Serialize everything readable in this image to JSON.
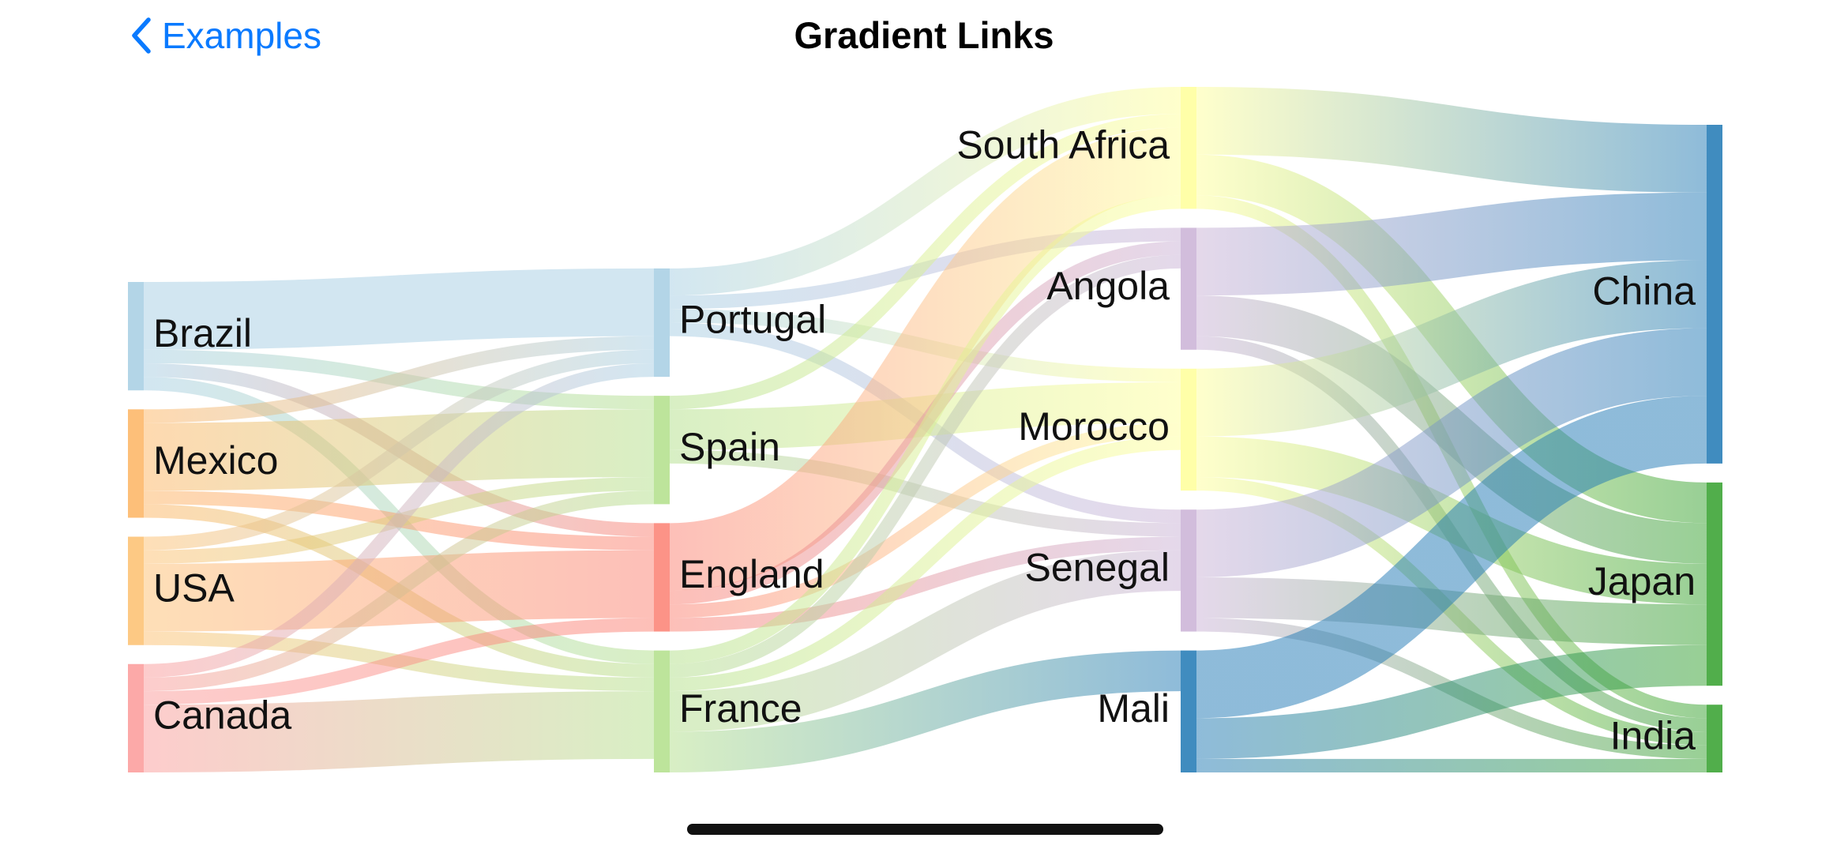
{
  "nav": {
    "back_label": "Examples",
    "title": "Gradient Links",
    "back_icon": "chevron-left-icon",
    "accent_color": "#0a7aff"
  },
  "chart_data": {
    "type": "sankey",
    "title": "Gradient Links",
    "columns": [
      [
        "Brazil",
        "Mexico",
        "USA",
        "Canada"
      ],
      [
        "Portugal",
        "Spain",
        "England",
        "France"
      ],
      [
        "South Africa",
        "Angola",
        "Morocco",
        "Senegal",
        "Mali"
      ],
      [
        "China",
        "Japan",
        "India"
      ]
    ],
    "nodes": [
      {
        "name": "Brazil",
        "color": "#a6cee3"
      },
      {
        "name": "Mexico",
        "color": "#fdb462"
      },
      {
        "name": "USA",
        "color": "#fdbf6f"
      },
      {
        "name": "Canada",
        "color": "#fb9a99"
      },
      {
        "name": "Portugal",
        "color": "#a6cee3"
      },
      {
        "name": "Spain",
        "color": "#b2df8a"
      },
      {
        "name": "England",
        "color": "#fb8072"
      },
      {
        "name": "France",
        "color": "#b2df8a"
      },
      {
        "name": "South Africa",
        "color": "#ffff99"
      },
      {
        "name": "Angola",
        "color": "#cab2d6"
      },
      {
        "name": "Morocco",
        "color": "#ffff99"
      },
      {
        "name": "Senegal",
        "color": "#cab2d6"
      },
      {
        "name": "Mali",
        "color": "#1f78b4"
      },
      {
        "name": "China",
        "color": "#1f78b4"
      },
      {
        "name": "Japan",
        "color": "#33a02c"
      },
      {
        "name": "India",
        "color": "#33a02c"
      }
    ],
    "links": [
      {
        "source": "Brazil",
        "target": "Portugal",
        "value": 5
      },
      {
        "source": "Brazil",
        "target": "Spain",
        "value": 1
      },
      {
        "source": "Brazil",
        "target": "England",
        "value": 1
      },
      {
        "source": "Brazil",
        "target": "France",
        "value": 1
      },
      {
        "source": "Mexico",
        "target": "Portugal",
        "value": 1
      },
      {
        "source": "Mexico",
        "target": "Spain",
        "value": 5
      },
      {
        "source": "Mexico",
        "target": "England",
        "value": 1
      },
      {
        "source": "Mexico",
        "target": "France",
        "value": 1
      },
      {
        "source": "USA",
        "target": "Portugal",
        "value": 1
      },
      {
        "source": "USA",
        "target": "Spain",
        "value": 1
      },
      {
        "source": "USA",
        "target": "England",
        "value": 5
      },
      {
        "source": "USA",
        "target": "France",
        "value": 1
      },
      {
        "source": "Canada",
        "target": "Portugal",
        "value": 1
      },
      {
        "source": "Canada",
        "target": "Spain",
        "value": 1
      },
      {
        "source": "Canada",
        "target": "England",
        "value": 1
      },
      {
        "source": "Canada",
        "target": "France",
        "value": 5
      },
      {
        "source": "Portugal",
        "target": "South Africa",
        "value": 2
      },
      {
        "source": "Portugal",
        "target": "Angola",
        "value": 1
      },
      {
        "source": "Portugal",
        "target": "Morocco",
        "value": 1
      },
      {
        "source": "Portugal",
        "target": "Senegal",
        "value": 1
      },
      {
        "source": "Spain",
        "target": "South Africa",
        "value": 1
      },
      {
        "source": "Spain",
        "target": "Morocco",
        "value": 3
      },
      {
        "source": "Spain",
        "target": "Senegal",
        "value": 1
      },
      {
        "source": "England",
        "target": "South Africa",
        "value": 5
      },
      {
        "source": "England",
        "target": "Angola",
        "value": 1
      },
      {
        "source": "England",
        "target": "Morocco",
        "value": 1
      },
      {
        "source": "England",
        "target": "Senegal",
        "value": 1
      },
      {
        "source": "France",
        "target": "South Africa",
        "value": 1
      },
      {
        "source": "France",
        "target": "Angola",
        "value": 1
      },
      {
        "source": "France",
        "target": "Morocco",
        "value": 1
      },
      {
        "source": "France",
        "target": "Senegal",
        "value": 3
      },
      {
        "source": "France",
        "target": "Mali",
        "value": 3
      },
      {
        "source": "South Africa",
        "target": "China",
        "value": 5
      },
      {
        "source": "South Africa",
        "target": "Japan",
        "value": 3
      },
      {
        "source": "South Africa",
        "target": "India",
        "value": 1
      },
      {
        "source": "Angola",
        "target": "China",
        "value": 5
      },
      {
        "source": "Angola",
        "target": "Japan",
        "value": 3
      },
      {
        "source": "Angola",
        "target": "India",
        "value": 1
      },
      {
        "source": "Morocco",
        "target": "China",
        "value": 5
      },
      {
        "source": "Morocco",
        "target": "Japan",
        "value": 3
      },
      {
        "source": "Morocco",
        "target": "India",
        "value": 1
      },
      {
        "source": "Senegal",
        "target": "China",
        "value": 5
      },
      {
        "source": "Senegal",
        "target": "Japan",
        "value": 3
      },
      {
        "source": "Senegal",
        "target": "India",
        "value": 1
      },
      {
        "source": "Mali",
        "target": "China",
        "value": 5
      },
      {
        "source": "Mali",
        "target": "Japan",
        "value": 3
      },
      {
        "source": "Mali",
        "target": "India",
        "value": 1
      }
    ]
  }
}
